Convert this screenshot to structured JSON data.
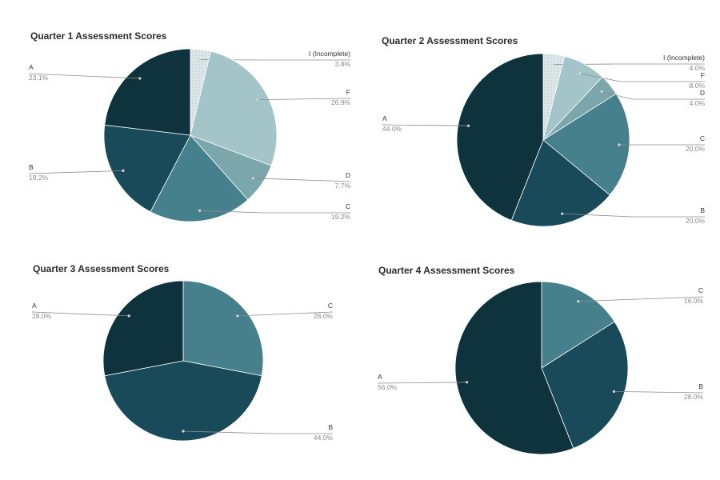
{
  "colors": {
    "A": "#0f333d",
    "B": "#184a5a",
    "C": "#46808c",
    "D": "#7aa6ac",
    "F": "#a3c4c8",
    "I": "#dde6e7",
    "leader": "#8c8c8c"
  },
  "chart_data": [
    {
      "type": "pie",
      "title": "Quarter 1 Assessment Scores",
      "categories": [
        "I (Incomplete)",
        "F",
        "D",
        "C",
        "B",
        "A"
      ],
      "values": [
        3.8,
        26.9,
        7.7,
        19.2,
        19.2,
        23.1
      ],
      "labels": [
        "3.8%",
        "26.9%",
        "7.7%",
        "19.2%",
        "19.2%",
        "23.1%"
      ],
      "keys": [
        "I",
        "F",
        "D",
        "C",
        "B",
        "A"
      ]
    },
    {
      "type": "pie",
      "title": "Quarter 2 Assessment Scores",
      "categories": [
        "I (Incomplete)",
        "F",
        "D",
        "C",
        "B",
        "A"
      ],
      "values": [
        4.0,
        8.0,
        4.0,
        20.0,
        20.0,
        44.0
      ],
      "labels": [
        "4.0%",
        "8.0%",
        "4.0%",
        "20.0%",
        "20.0%",
        "44.0%"
      ],
      "keys": [
        "I",
        "F",
        "D",
        "C",
        "B",
        "A"
      ]
    },
    {
      "type": "pie",
      "title": "Quarter 3 Assessment Scores",
      "categories": [
        "C",
        "B",
        "A"
      ],
      "values": [
        28.0,
        44.0,
        28.0
      ],
      "labels": [
        "28.0%",
        "44.0%",
        "28.0%"
      ],
      "keys": [
        "C",
        "B",
        "A"
      ]
    },
    {
      "type": "pie",
      "title": "Quarter 4 Assessment Scores",
      "categories": [
        "C",
        "B",
        "A"
      ],
      "values": [
        16.0,
        28.0,
        56.0
      ],
      "labels": [
        "16.0%",
        "28.0%",
        "56.0%"
      ],
      "keys": [
        "C",
        "B",
        "A"
      ]
    }
  ]
}
